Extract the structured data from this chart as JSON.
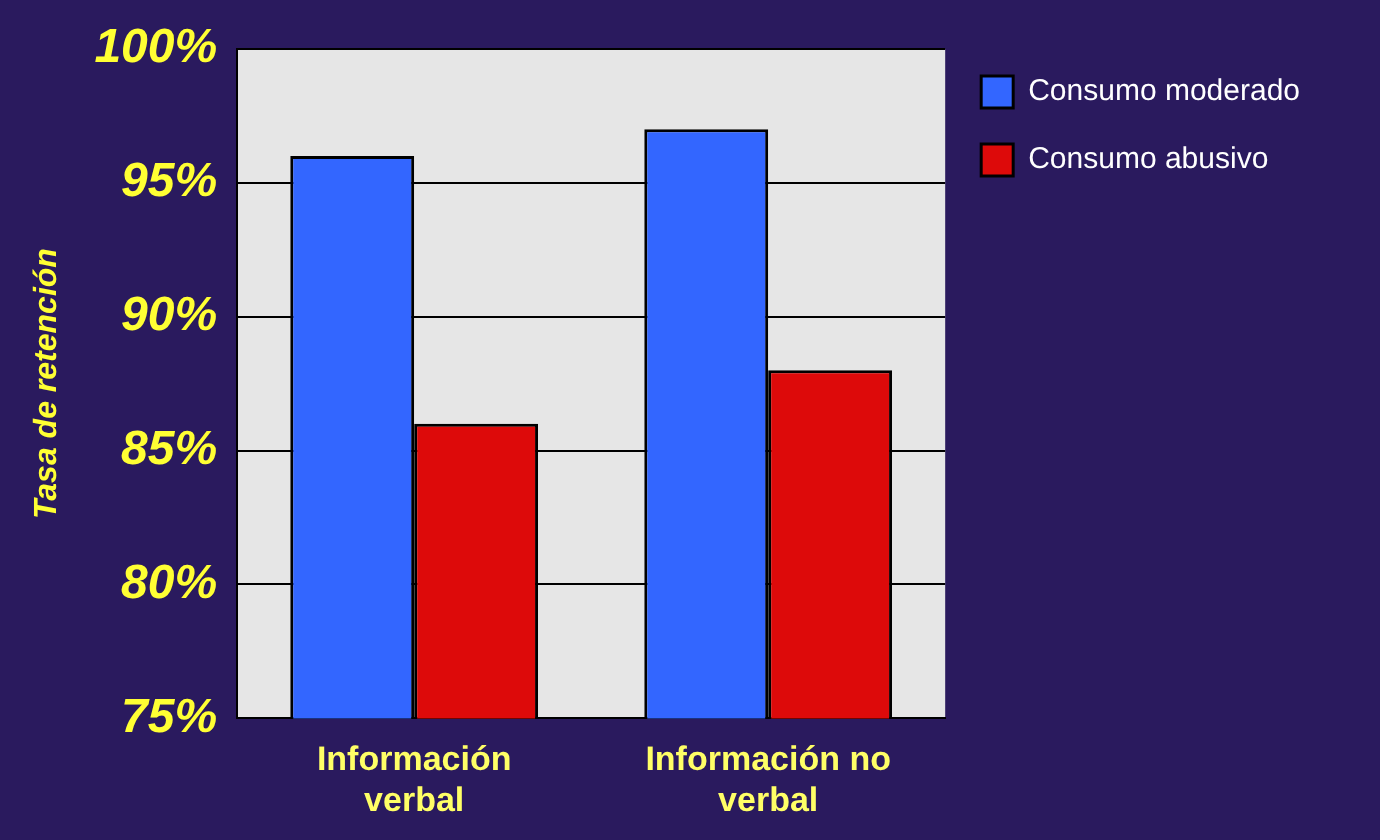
{
  "chart_data": {
    "type": "bar",
    "ylabel": "Tasa de retención",
    "categories": [
      "Información verbal",
      "Información no verbal"
    ],
    "series": [
      {
        "name": "Consumo moderado",
        "color": "#3366ff",
        "values": [
          96,
          97
        ]
      },
      {
        "name": "Consumo abusivo",
        "color": "#dd0a0a",
        "values": [
          86,
          88
        ]
      }
    ],
    "ylim": [
      75,
      100
    ],
    "yticks": [
      {
        "value": 75,
        "label": "75%"
      },
      {
        "value": 80,
        "label": "80%"
      },
      {
        "value": 85,
        "label": "85%"
      },
      {
        "value": 90,
        "label": "90%"
      },
      {
        "value": 95,
        "label": "95%"
      },
      {
        "value": 100,
        "label": "100%"
      }
    ],
    "grid": "y",
    "legend": "right"
  }
}
